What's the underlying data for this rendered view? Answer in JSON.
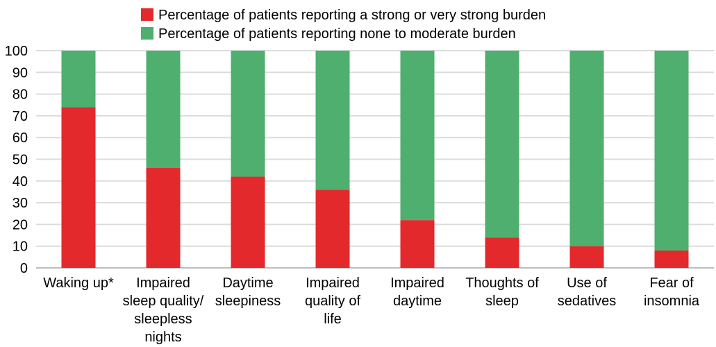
{
  "chart_data": {
    "type": "bar",
    "stacked": true,
    "categories": [
      [
        "Waking up*"
      ],
      [
        "Impaired",
        "sleep quality/",
        "sleepless",
        "nights"
      ],
      [
        "Daytime",
        "sleepiness"
      ],
      [
        "Impaired",
        "quality of",
        "life"
      ],
      [
        "Impaired",
        "daytime"
      ],
      [
        "Thoughts of",
        "sleep"
      ],
      [
        "Use of",
        "sedatives"
      ],
      [
        "Fear of",
        "insomnia"
      ]
    ],
    "series": [
      {
        "name": "Percentage of patients reporting a strong or very strong burden",
        "color": "#e3292b",
        "values": [
          74,
          46,
          42,
          36,
          22,
          14,
          10,
          8
        ]
      },
      {
        "name": "Percentage of patients reporting none to moderate burden",
        "color": "#4eaf6e",
        "values": [
          26,
          54,
          58,
          64,
          78,
          86,
          90,
          92
        ]
      }
    ],
    "ylim": [
      0,
      100
    ],
    "yticks": [
      0,
      10,
      20,
      30,
      40,
      50,
      60,
      70,
      80,
      90,
      100
    ],
    "grid": true,
    "legend_position": "top",
    "title": "",
    "xlabel": "",
    "ylabel": ""
  }
}
